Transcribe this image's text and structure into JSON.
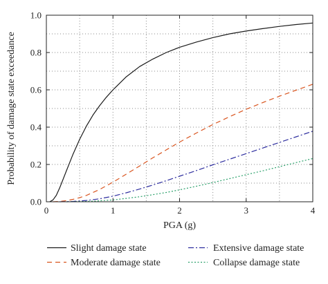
{
  "chart_data": {
    "type": "line",
    "title": "",
    "xlabel": "PGA (g)",
    "ylabel": "Probability of damage state exceedance",
    "xlim": [
      0,
      4
    ],
    "ylim": [
      0,
      1.0
    ],
    "x_ticks": [
      0,
      1,
      2,
      3,
      4
    ],
    "x_tick_labels": [
      "0",
      "1",
      "2",
      "3",
      "4"
    ],
    "y_ticks": [
      0,
      0.2,
      0.4,
      0.6,
      0.8,
      1.0
    ],
    "y_tick_labels": [
      "0.0",
      "0.2",
      "0.4",
      "0.6",
      "0.8",
      "1.0"
    ],
    "grid": true,
    "grid_style": "dotted",
    "legend_placement": "bottom",
    "series": [
      {
        "name": "Slight damage state",
        "color": "#1a1a1a",
        "dash": "solid",
        "x": [
          0.05,
          0.1,
          0.15,
          0.2,
          0.25,
          0.3,
          0.35,
          0.4,
          0.5,
          0.6,
          0.7,
          0.8,
          0.9,
          1.0,
          1.2,
          1.4,
          1.6,
          1.8,
          2.0,
          2.25,
          2.5,
          2.75,
          3.0,
          3.25,
          3.5,
          3.75,
          4.0
        ],
        "y": [
          0.0,
          0.01,
          0.035,
          0.075,
          0.12,
          0.165,
          0.21,
          0.255,
          0.335,
          0.405,
          0.465,
          0.515,
          0.56,
          0.6,
          0.67,
          0.725,
          0.765,
          0.8,
          0.828,
          0.856,
          0.88,
          0.9,
          0.915,
          0.928,
          0.94,
          0.95,
          0.958
        ]
      },
      {
        "name": "Moderate damage state",
        "color": "#d9541e",
        "dash": "dashed",
        "x": [
          0.1,
          0.2,
          0.3,
          0.4,
          0.5,
          0.6,
          0.8,
          1.0,
          1.2,
          1.4,
          1.6,
          1.8,
          2.0,
          2.25,
          2.5,
          2.75,
          3.0,
          3.25,
          3.5,
          3.75,
          4.0
        ],
        "y": [
          0.0,
          0.002,
          0.006,
          0.013,
          0.022,
          0.034,
          0.066,
          0.105,
          0.148,
          0.192,
          0.236,
          0.278,
          0.32,
          0.368,
          0.414,
          0.456,
          0.496,
          0.532,
          0.566,
          0.598,
          0.63
        ]
      },
      {
        "name": "Extensive damage state",
        "color": "#2c2c9e",
        "dash": "dashdot",
        "x": [
          0.2,
          0.4,
          0.6,
          0.8,
          1.0,
          1.2,
          1.4,
          1.6,
          1.8,
          2.0,
          2.25,
          2.5,
          2.75,
          3.0,
          3.25,
          3.5,
          3.75,
          4.0
        ],
        "y": [
          0.0,
          0.002,
          0.007,
          0.016,
          0.03,
          0.048,
          0.068,
          0.09,
          0.113,
          0.137,
          0.167,
          0.198,
          0.228,
          0.258,
          0.288,
          0.318,
          0.348,
          0.378
        ]
      },
      {
        "name": "Collapse damage state",
        "color": "#2aa06a",
        "dash": "dotted",
        "x": [
          0.3,
          0.6,
          0.8,
          1.0,
          1.2,
          1.4,
          1.6,
          1.8,
          2.0,
          2.25,
          2.5,
          2.75,
          3.0,
          3.25,
          3.5,
          3.75,
          4.0
        ],
        "y": [
          0.0,
          0.002,
          0.005,
          0.01,
          0.018,
          0.027,
          0.038,
          0.05,
          0.064,
          0.083,
          0.103,
          0.124,
          0.145,
          0.166,
          0.188,
          0.21,
          0.232
        ]
      }
    ]
  }
}
